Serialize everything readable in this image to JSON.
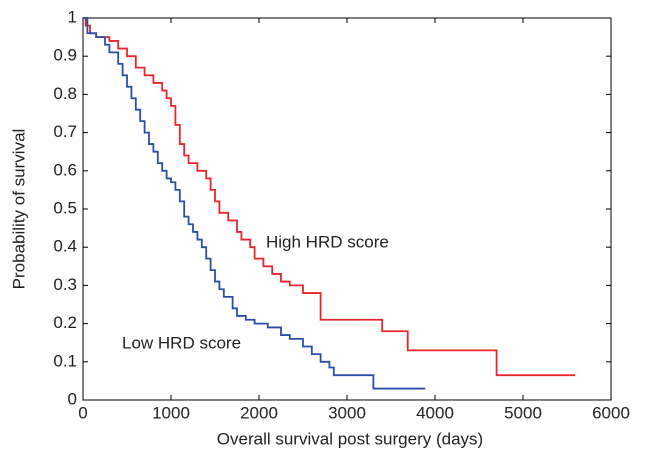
{
  "chart_data": {
    "type": "line",
    "step": "post",
    "xlabel": "Overall survival post surgery (days)",
    "ylabel": "Probability of survival",
    "annotations": [
      "High HRD score",
      "Low HRD score"
    ],
    "xlim": [
      0,
      6000
    ],
    "ylim": [
      0,
      1
    ],
    "xticks": [
      0,
      1000,
      2000,
      3000,
      4000,
      5000,
      6000
    ],
    "yticks": [
      0,
      0.1,
      0.2,
      0.3,
      0.4,
      0.5,
      0.6,
      0.7,
      0.8,
      0.9,
      1
    ],
    "series": [
      {
        "name": "High HRD score",
        "color": "#e8262b",
        "x": [
          0,
          30,
          80,
          150,
          300,
          400,
          500,
          600,
          700,
          800,
          900,
          950,
          1000,
          1050,
          1100,
          1150,
          1200,
          1300,
          1400,
          1450,
          1500,
          1550,
          1650,
          1750,
          1800,
          1900,
          1950,
          2050,
          2150,
          2250,
          2350,
          2500,
          2700,
          3400,
          3690,
          4700,
          5590
        ],
        "values": [
          1.0,
          0.98,
          0.96,
          0.95,
          0.94,
          0.92,
          0.9,
          0.87,
          0.85,
          0.83,
          0.81,
          0.79,
          0.77,
          0.72,
          0.67,
          0.64,
          0.62,
          0.6,
          0.58,
          0.55,
          0.52,
          0.49,
          0.47,
          0.44,
          0.42,
          0.4,
          0.37,
          0.35,
          0.33,
          0.31,
          0.3,
          0.28,
          0.21,
          0.18,
          0.13,
          0.065,
          0.065
        ]
      },
      {
        "name": "Low HRD score",
        "color": "#2b4ea8",
        "x": [
          0,
          50,
          150,
          250,
          300,
          400,
          450,
          500,
          550,
          600,
          650,
          700,
          750,
          800,
          850,
          900,
          950,
          1000,
          1050,
          1100,
          1150,
          1200,
          1250,
          1300,
          1350,
          1400,
          1450,
          1500,
          1550,
          1600,
          1700,
          1750,
          1850,
          1950,
          2100,
          2250,
          2350,
          2500,
          2600,
          2700,
          2800,
          2850,
          3300,
          3890
        ],
        "values": [
          1.0,
          0.96,
          0.95,
          0.93,
          0.91,
          0.88,
          0.85,
          0.82,
          0.79,
          0.76,
          0.73,
          0.7,
          0.67,
          0.65,
          0.62,
          0.6,
          0.58,
          0.57,
          0.55,
          0.52,
          0.48,
          0.46,
          0.44,
          0.42,
          0.4,
          0.37,
          0.34,
          0.31,
          0.29,
          0.27,
          0.24,
          0.22,
          0.21,
          0.2,
          0.19,
          0.17,
          0.16,
          0.14,
          0.12,
          0.1,
          0.085,
          0.065,
          0.03,
          0.03
        ]
      }
    ]
  }
}
